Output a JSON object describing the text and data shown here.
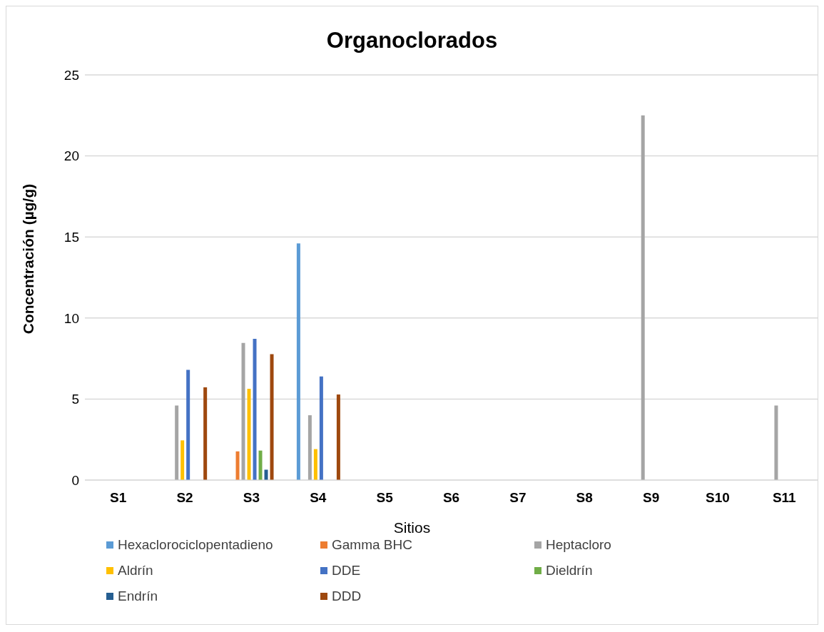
{
  "chart_data": {
    "type": "bar",
    "title": "Organoclorados",
    "xlabel": "Sitios",
    "ylabel": "Concentración (µg/g)",
    "categories": [
      "S1",
      "S2",
      "S3",
      "S4",
      "S5",
      "S6",
      "S7",
      "S8",
      "S9",
      "S10",
      "S11"
    ],
    "series": [
      {
        "name": "Hexaclorociclopentadieno",
        "color": "#5b9bd5",
        "values": [
          null,
          null,
          null,
          14.6,
          null,
          null,
          null,
          null,
          null,
          null,
          null
        ]
      },
      {
        "name": "Gamma BHC",
        "color": "#ed7d31",
        "values": [
          null,
          null,
          1.77,
          null,
          null,
          null,
          null,
          null,
          null,
          null,
          null
        ]
      },
      {
        "name": "Heptacloro",
        "color": "#a5a5a5",
        "values": [
          null,
          4.6,
          8.46,
          4.0,
          null,
          null,
          null,
          null,
          22.5,
          null,
          4.6
        ]
      },
      {
        "name": "Aldrín",
        "color": "#ffc000",
        "values": [
          null,
          2.45,
          5.63,
          1.91,
          null,
          null,
          null,
          null,
          null,
          null,
          null
        ]
      },
      {
        "name": "DDE",
        "color": "#4472c4",
        "values": [
          null,
          6.8,
          8.71,
          6.39,
          null,
          null,
          null,
          null,
          null,
          null,
          null
        ]
      },
      {
        "name": "Dieldrín",
        "color": "#70ad47",
        "values": [
          null,
          null,
          1.82,
          null,
          null,
          null,
          null,
          null,
          null,
          null,
          null
        ]
      },
      {
        "name": "Endrín",
        "color": "#255e91",
        "values": [
          null,
          null,
          0.64,
          null,
          null,
          null,
          null,
          null,
          null,
          null,
          null
        ]
      },
      {
        "name": "DDD",
        "color": "#9e480e",
        "values": [
          null,
          5.72,
          7.77,
          5.28,
          null,
          null,
          null,
          null,
          null,
          null,
          null
        ]
      }
    ],
    "ylim": [
      0,
      25
    ],
    "yticks": [
      0,
      5,
      10,
      15,
      20,
      25
    ],
    "grid": "y",
    "legend": "bottom"
  }
}
